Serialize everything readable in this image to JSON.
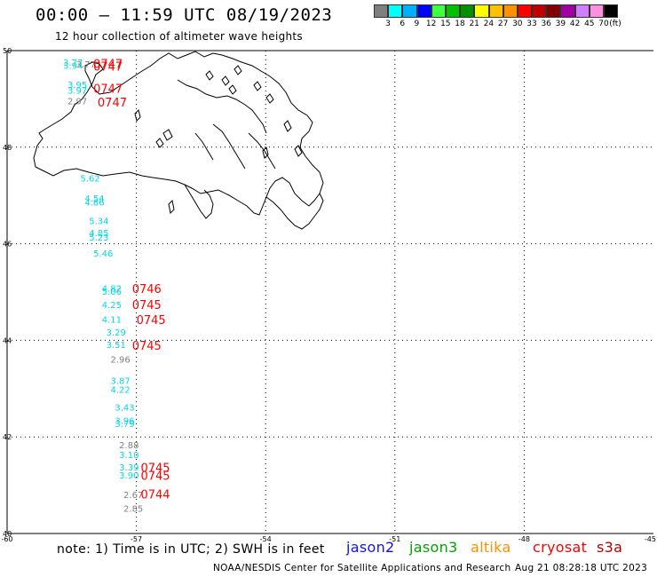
{
  "title": "00:00 – 11:59 UTC 08/19/2023",
  "subtitle": "12 hour collection of altimeter wave heights",
  "colorbar": {
    "colors": [
      "#7f7f7f",
      "#00ffff",
      "#00b0ff",
      "#0000ff",
      "#40ff40",
      "#00c000",
      "#009000",
      "#ffff00",
      "#ffc000",
      "#ff9000",
      "#ff0000",
      "#c00000",
      "#800000",
      "#a000a0",
      "#d080ff",
      "#ff90e0",
      "#000000"
    ],
    "labels": [
      "3",
      "6",
      "9",
      "12",
      "15",
      "18",
      "21",
      "24",
      "27",
      "30",
      "33",
      "36",
      "39",
      "42",
      "45",
      "70"
    ],
    "unit": "(ft)"
  },
  "axes": {
    "y_ticks": [
      {
        "lat": 50,
        "label": "50"
      },
      {
        "lat": 48,
        "label": "48"
      },
      {
        "lat": 46,
        "label": "46"
      },
      {
        "lat": 44,
        "label": "44"
      },
      {
        "lat": 42,
        "label": "42"
      },
      {
        "lat": 40,
        "label": "40"
      }
    ],
    "x_ticks": [
      {
        "lon": -60,
        "label": "-60"
      },
      {
        "lon": -57,
        "label": "-57"
      },
      {
        "lon": -54,
        "label": "-54"
      },
      {
        "lon": -51,
        "label": "-51"
      },
      {
        "lon": -48,
        "label": "-48"
      },
      {
        "lon": -45,
        "label": "-45"
      }
    ],
    "lon_range": [
      -60,
      -45
    ],
    "lat_range": [
      40,
      50
    ]
  },
  "colors": {
    "cyan": "#00d8e8",
    "gray": "#808080",
    "red": "#ff0000"
  },
  "wave_heights": [
    {
      "lon": -58.7,
      "lat": 49.76,
      "value": "3.77",
      "color": "cyan"
    },
    {
      "lon": -58.7,
      "lat": 49.7,
      "value": "3.94",
      "color": "cyan"
    },
    {
      "lon": -58.4,
      "lat": 49.72,
      "value": "3.77",
      "color": "gray"
    },
    {
      "lon": -58.6,
      "lat": 49.3,
      "value": "3.95",
      "color": "cyan"
    },
    {
      "lon": -58.6,
      "lat": 49.18,
      "value": "3.97",
      "color": "cyan"
    },
    {
      "lon": -58.6,
      "lat": 48.96,
      "value": "2.97",
      "color": "gray"
    },
    {
      "lon": -58.3,
      "lat": 47.36,
      "value": "5.62",
      "color": "cyan"
    },
    {
      "lon": -58.2,
      "lat": 46.95,
      "value": "4.54",
      "color": "cyan"
    },
    {
      "lon": -58.2,
      "lat": 46.87,
      "value": "4.86",
      "color": "cyan"
    },
    {
      "lon": -58.1,
      "lat": 46.48,
      "value": "5.34",
      "color": "cyan"
    },
    {
      "lon": -58.1,
      "lat": 46.23,
      "value": "4.85",
      "color": "cyan"
    },
    {
      "lon": -58.1,
      "lat": 46.14,
      "value": "5.23",
      "color": "cyan"
    },
    {
      "lon": -58.0,
      "lat": 45.81,
      "value": "5.46",
      "color": "cyan"
    },
    {
      "lon": -57.8,
      "lat": 45.08,
      "value": "4.82",
      "color": "cyan"
    },
    {
      "lon": -57.8,
      "lat": 45.02,
      "value": "5.06",
      "color": "cyan"
    },
    {
      "lon": -57.8,
      "lat": 44.74,
      "value": "4.25",
      "color": "cyan"
    },
    {
      "lon": -57.8,
      "lat": 44.44,
      "value": "4.11",
      "color": "cyan"
    },
    {
      "lon": -57.7,
      "lat": 44.17,
      "value": "3.29",
      "color": "cyan"
    },
    {
      "lon": -57.7,
      "lat": 43.92,
      "value": "3.51",
      "color": "cyan"
    },
    {
      "lon": -57.6,
      "lat": 43.61,
      "value": "2.96",
      "color": "gray"
    },
    {
      "lon": -57.6,
      "lat": 43.17,
      "value": "3.87",
      "color": "cyan"
    },
    {
      "lon": -57.6,
      "lat": 42.99,
      "value": "4.22",
      "color": "cyan"
    },
    {
      "lon": -57.5,
      "lat": 42.62,
      "value": "3.43",
      "color": "cyan"
    },
    {
      "lon": -57.5,
      "lat": 42.34,
      "value": "3.96",
      "color": "cyan"
    },
    {
      "lon": -57.5,
      "lat": 42.28,
      "value": "3.79",
      "color": "cyan"
    },
    {
      "lon": -57.4,
      "lat": 41.84,
      "value": "2.88",
      "color": "gray"
    },
    {
      "lon": -57.4,
      "lat": 41.64,
      "value": "3.10",
      "color": "cyan"
    },
    {
      "lon": -57.4,
      "lat": 41.38,
      "value": "3.39",
      "color": "cyan"
    },
    {
      "lon": -57.4,
      "lat": 41.21,
      "value": "3.90",
      "color": "cyan"
    },
    {
      "lon": -57.3,
      "lat": 40.81,
      "value": "2.67",
      "color": "gray"
    },
    {
      "lon": -57.3,
      "lat": 40.52,
      "value": "2.85",
      "color": "gray"
    }
  ],
  "time_labels": [
    {
      "lon": -58.0,
      "lat": 49.73,
      "value": "0747"
    },
    {
      "lon": -58.0,
      "lat": 49.68,
      "value": "0747"
    },
    {
      "lon": -58.0,
      "lat": 49.22,
      "value": "0747"
    },
    {
      "lon": -57.9,
      "lat": 48.93,
      "value": "0747"
    },
    {
      "lon": -57.1,
      "lat": 45.07,
      "value": "0746"
    },
    {
      "lon": -57.1,
      "lat": 44.74,
      "value": "0745"
    },
    {
      "lon": -57.0,
      "lat": 44.43,
      "value": "0745"
    },
    {
      "lon": -57.1,
      "lat": 43.9,
      "value": "0745"
    },
    {
      "lon": -56.9,
      "lat": 41.37,
      "value": "0745"
    },
    {
      "lon": -56.9,
      "lat": 41.2,
      "value": "0745"
    },
    {
      "lon": -56.9,
      "lat": 40.82,
      "value": "0744"
    }
  ],
  "note": "note:  1) Time is in UTC;  2) SWH is in feet",
  "satellites": [
    {
      "name": "jason2",
      "color": "#1010ff"
    },
    {
      "name": "jason3",
      "color": "#00a000"
    },
    {
      "name": "altika",
      "color": "#ff9000"
    },
    {
      "name": "cryosat",
      "color": "#ff0000"
    },
    {
      "name": "s3a",
      "color": "#b00000"
    }
  ],
  "footer": {
    "org": "NOAA/NESDIS Center for Satellite Applications and Research",
    "generated": "Aug 21 08:28:18 UTC 2023"
  }
}
